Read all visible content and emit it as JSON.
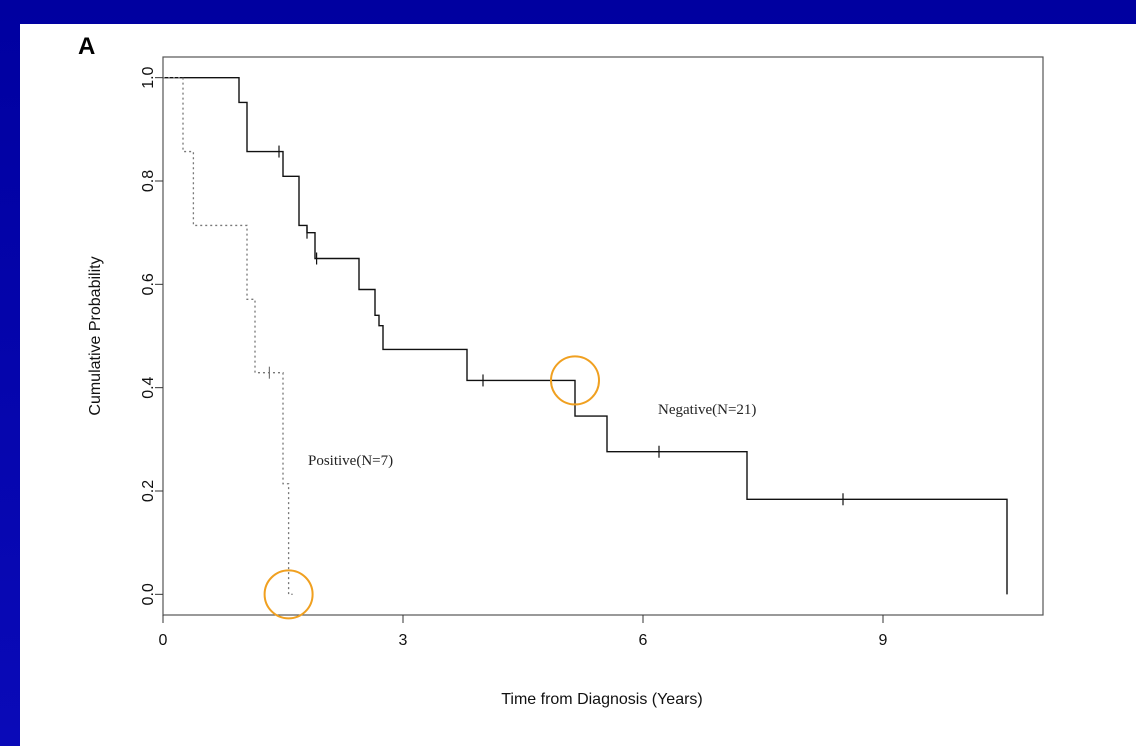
{
  "colors": {
    "background": "#0a0aa8",
    "panel": "#ffffff",
    "negative_line": "#111111",
    "positive_line": "#777777",
    "highlight_circle": "#f0a020"
  },
  "chart_data": {
    "type": "line",
    "panel_letter": "A",
    "xlabel": "Time from Diagnosis (Years)",
    "ylabel": "Cumulative Probability",
    "xlim": [
      0,
      11
    ],
    "ylim": [
      -0.04,
      1.04
    ],
    "x_ticks": [
      0,
      3,
      6,
      9
    ],
    "y_ticks": [
      "0.0",
      "0.2",
      "0.4",
      "0.6",
      "0.8",
      "1.0"
    ],
    "grid": false,
    "series": [
      {
        "name": "Negative(N=21)",
        "style": "solid",
        "step_x": [
          0,
          0.95,
          1.05,
          1.5,
          1.7,
          1.8,
          1.9,
          2.45,
          2.65,
          2.7,
          2.75,
          3.8,
          5.15,
          5.55,
          7.3,
          10.55
        ],
        "step_y": [
          1.0,
          0.952,
          0.857,
          0.809,
          0.714,
          0.7,
          0.65,
          0.59,
          0.54,
          0.52,
          0.474,
          0.414,
          0.345,
          0.276,
          0.184,
          0.0
        ],
        "end_x": 10.55,
        "censor_x": [
          1.45,
          1.8,
          1.92,
          4.0,
          6.2,
          8.5
        ],
        "censor_y": [
          0.857,
          0.7,
          0.65,
          0.414,
          0.276,
          0.184
        ]
      },
      {
        "name": "Positive(N=7)",
        "style": "dotted",
        "step_x": [
          0,
          0.25,
          0.38,
          1.05,
          1.15,
          1.25,
          1.5,
          1.57
        ],
        "step_y": [
          1.0,
          0.857,
          0.714,
          0.571,
          0.429,
          0.429,
          0.214,
          0.0
        ],
        "end_x": 1.62,
        "censor_x": [
          1.33
        ],
        "censor_y": [
          0.429
        ]
      }
    ],
    "highlight_circles": [
      {
        "x": 5.15,
        "y": 0.414
      },
      {
        "x": 1.57,
        "y": 0.0
      }
    ]
  }
}
